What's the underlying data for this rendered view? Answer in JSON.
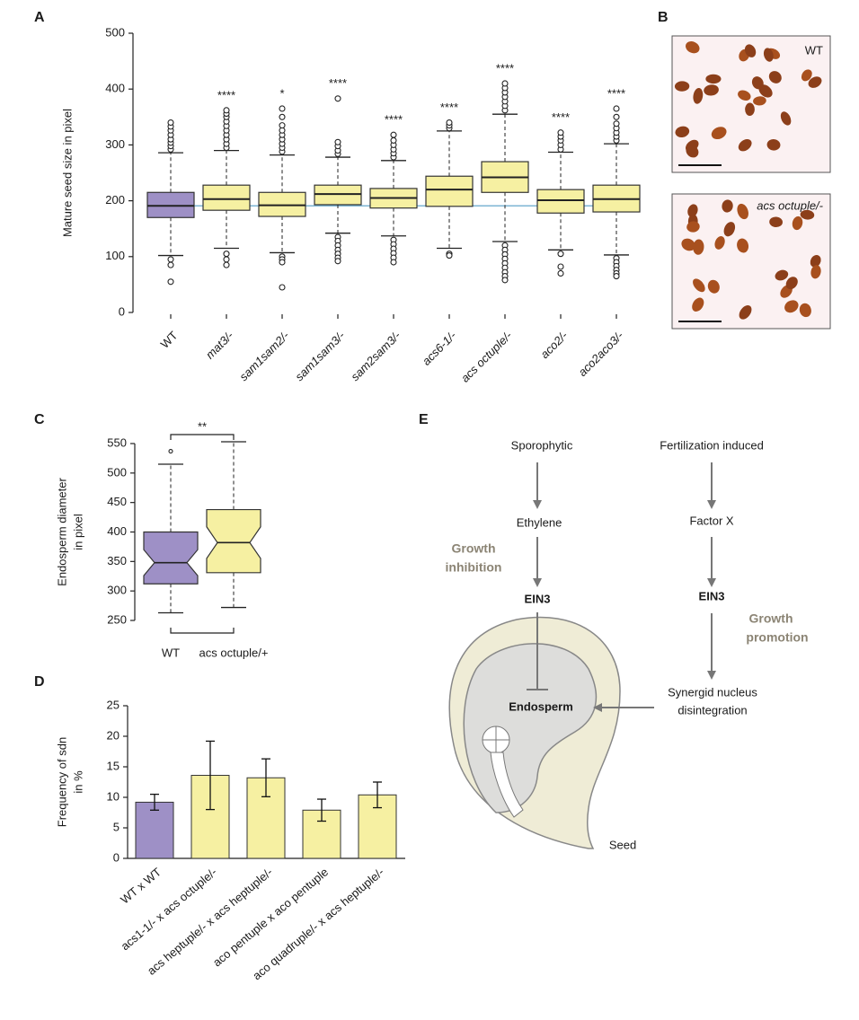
{
  "panel_labels": [
    "A",
    "B",
    "C",
    "D",
    "E"
  ],
  "chart_data": [
    {
      "type": "box",
      "ylabel": [
        "Mature seed size in pixel"
      ],
      "categories": [
        "WT",
        "mat3/-",
        "sam1sam2/-",
        "sam1sam3/-",
        "sam2sam3/-",
        "acs6-1/-",
        "acs octuple/-",
        "aco2/-",
        "aco2aco3/-"
      ],
      "colors": [
        "#9e90c6",
        "#f6f0a2",
        "#f6f0a2",
        "#f6f0a2",
        "#f6f0a2",
        "#f6f0a2",
        "#f6f0a2",
        "#f6f0a2",
        "#f6f0a2"
      ],
      "annotations": [
        null,
        "****",
        "*",
        "****",
        "****",
        "****",
        "****",
        "****",
        "****"
      ],
      "median_line": true,
      "median_line_color": "#7db6d4",
      "boxes": [
        {
          "whisker_low": 102,
          "q1": 170,
          "median": 191,
          "q3": 215,
          "whisker_high": 286,
          "outliers": [
            95,
            85,
            55,
            292,
            298,
            304,
            310,
            318,
            326,
            333,
            340
          ]
        },
        {
          "whisker_low": 115,
          "q1": 183,
          "median": 203,
          "q3": 228,
          "whisker_high": 290,
          "outliers": [
            105,
            95,
            85,
            295,
            302,
            310,
            318,
            326,
            334,
            342,
            350,
            356,
            362
          ]
        },
        {
          "whisker_low": 107,
          "q1": 172,
          "median": 192,
          "q3": 215,
          "whisker_high": 282,
          "outliers": [
            100,
            95,
            90,
            45,
            288,
            295,
            302,
            310,
            318,
            326,
            335,
            350,
            365
          ]
        },
        {
          "whisker_low": 142,
          "q1": 193,
          "median": 212,
          "q3": 228,
          "whisker_high": 278,
          "outliers": [
            135,
            128,
            120,
            112,
            105,
            98,
            92,
            284,
            290,
            298,
            305,
            383
          ]
        },
        {
          "whisker_low": 137,
          "q1": 187,
          "median": 205,
          "q3": 222,
          "whisker_high": 272,
          "outliers": [
            130,
            122,
            114,
            106,
            98,
            90,
            278,
            285,
            292,
            300,
            308,
            318
          ]
        },
        {
          "whisker_low": 115,
          "q1": 190,
          "median": 220,
          "q3": 244,
          "whisker_high": 325,
          "outliers": [
            105,
            102,
            330,
            335,
            340
          ]
        },
        {
          "whisker_low": 127,
          "q1": 215,
          "median": 242,
          "q3": 270,
          "whisker_high": 355,
          "outliers": [
            120,
            112,
            104,
            96,
            88,
            80,
            72,
            65,
            58,
            362,
            370,
            378,
            386,
            394,
            402,
            410
          ]
        },
        {
          "whisker_low": 112,
          "q1": 178,
          "median": 201,
          "q3": 220,
          "whisker_high": 287,
          "outliers": [
            105,
            82,
            70,
            292,
            300,
            308,
            315,
            322
          ]
        },
        {
          "whisker_low": 103,
          "q1": 180,
          "median": 203,
          "q3": 228,
          "whisker_high": 302,
          "outliers": [
            97,
            90,
            83,
            76,
            70,
            65,
            308,
            315,
            322,
            330,
            338,
            350,
            365
          ]
        }
      ],
      "ylim": [
        0,
        500
      ],
      "yticks": [
        0,
        100,
        200,
        300,
        400,
        500
      ]
    },
    {
      "type": "box",
      "notched": true,
      "ylabel": [
        "Endosperm diameter",
        "in pixel"
      ],
      "categories": [
        "WT",
        "acs octuple/+"
      ],
      "colors": [
        "#9e90c6",
        "#f6f0a2"
      ],
      "bracket_annotation": "**",
      "boxes": [
        {
          "whisker_low": 263,
          "q1": 312,
          "median": 348,
          "q3": 400,
          "whisker_high": 515,
          "outliers": [
            537
          ]
        },
        {
          "whisker_low": 272,
          "q1": 331,
          "median": 382,
          "q3": 438,
          "whisker_high": 553,
          "outliers": []
        }
      ],
      "ylim": [
        250,
        550
      ],
      "yticks": [
        250,
        300,
        350,
        400,
        450,
        500,
        550
      ]
    },
    {
      "type": "bar",
      "ylabel": [
        "Frequency of sdn",
        "in %"
      ],
      "categories": [
        "WT x WT",
        "acs1-1/- x acs octuple/-",
        "acs heptuple/- x acs heptuple/-",
        "aco pentuple x aco pentuple",
        "aco quadruple/- x acs heptuple/-"
      ],
      "colors": [
        "#9e90c6",
        "#f6f0a2",
        "#f6f0a2",
        "#f6f0a2",
        "#f6f0a2"
      ],
      "values": [
        9.2,
        13.6,
        13.2,
        7.9,
        10.4
      ],
      "errors": [
        1.3,
        5.6,
        3.1,
        1.8,
        2.1
      ],
      "ylim": [
        0,
        25
      ],
      "yticks": [
        0,
        5,
        10,
        15,
        20,
        25
      ]
    }
  ],
  "images": {
    "top_label": "WT",
    "bottom_label": "acs octuple/-"
  },
  "diagram": {
    "sporophytic": "Sporophytic",
    "ethylene": "Ethylene",
    "growth_inhibition": [
      "Growth",
      "inhibition"
    ],
    "ein3_left": "EIN3",
    "fertilization": "Fertilization induced",
    "factor_x": "Factor X",
    "ein3_right": "EIN3",
    "growth_promotion": [
      "Growth",
      "promotion"
    ],
    "synergid": [
      "Synergid nucleus",
      "disintegration"
    ],
    "endosperm": "Endosperm",
    "seed": "Seed"
  }
}
